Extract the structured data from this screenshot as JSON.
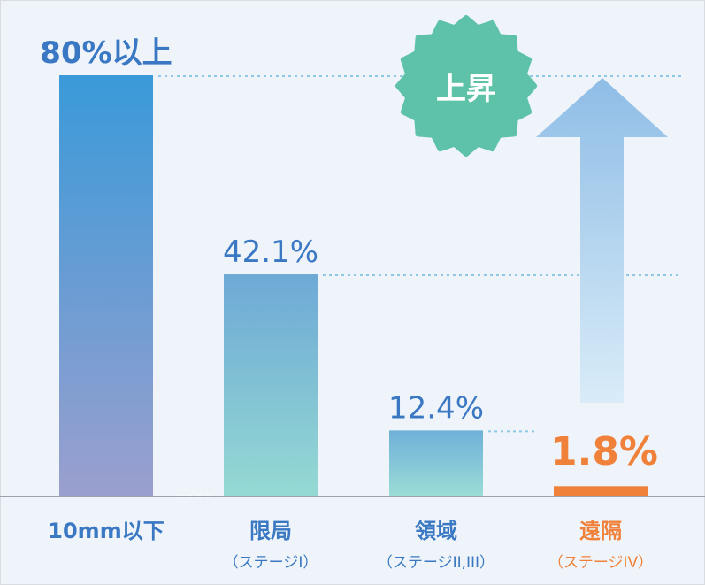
{
  "chart_data": {
    "type": "bar",
    "categories": [
      "10mm以下",
      "限局",
      "領域",
      "遠隔"
    ],
    "subcategories": [
      "",
      "（ステージI）",
      "（ステージII,III）",
      "（ステージIV）"
    ],
    "value_labels": [
      "80%以上",
      "42.1%",
      "12.4%",
      "1.8%"
    ],
    "values": [
      80,
      42.1,
      12.4,
      1.8
    ],
    "title": "",
    "xlabel": "",
    "ylabel": "",
    "ylim": [
      0,
      100
    ],
    "grid": false,
    "legend": "none",
    "annotation": "上昇"
  },
  "colors": {
    "background": "#eef4f9",
    "value_text": "#3a78c3",
    "highlight": "#f0813a",
    "badge": "#5ec2a9",
    "arrow": "#9cc4e8",
    "dotted": "#8fc7e6",
    "axis": "#9aa3ad"
  }
}
